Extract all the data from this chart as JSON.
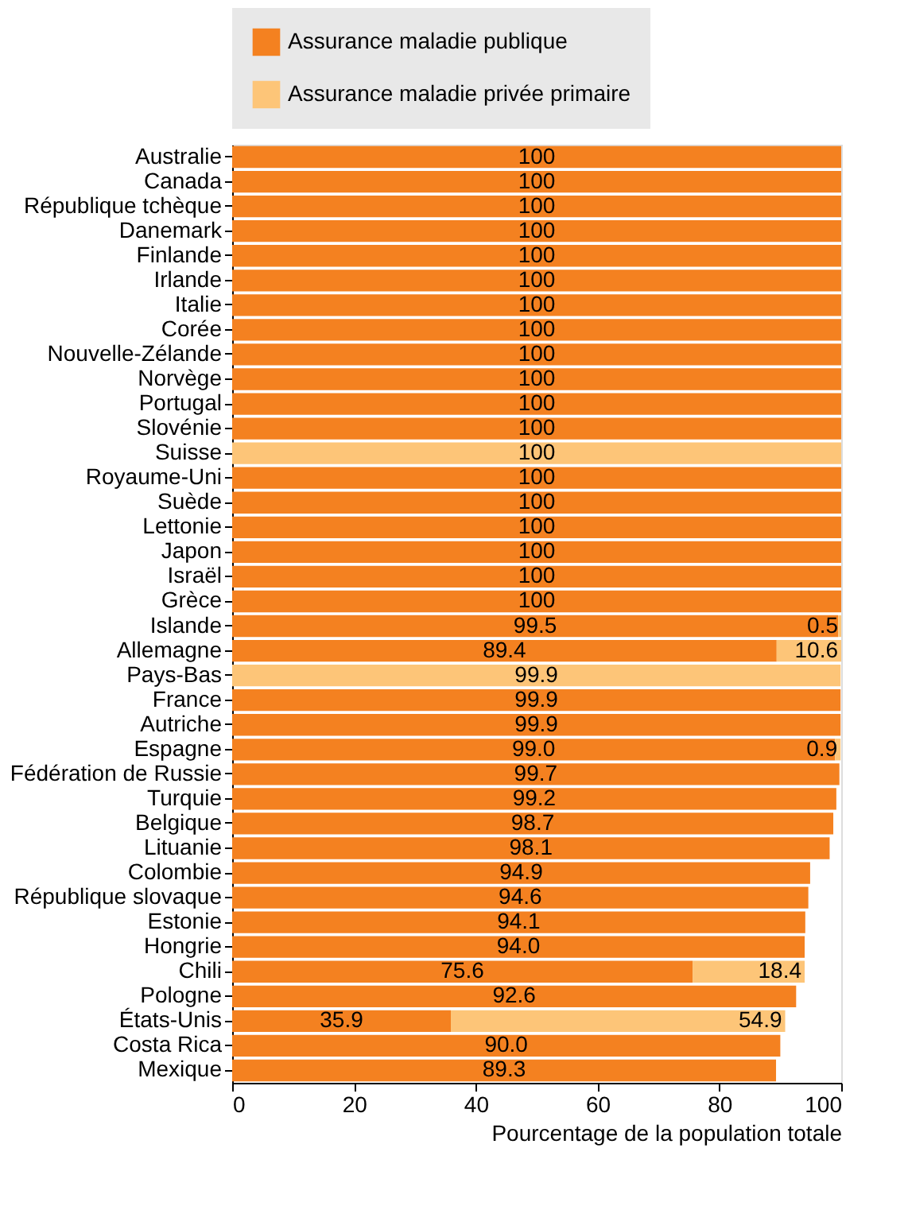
{
  "chart_data": {
    "type": "bar",
    "orientation": "horizontal",
    "stacked": true,
    "categories": [
      "Australie",
      "Canada",
      "République tchèque",
      "Danemark",
      "Finlande",
      "Irlande",
      "Italie",
      "Corée",
      "Nouvelle-Zélande",
      "Norvège",
      "Portugal",
      "Slovénie",
      "Suisse",
      "Royaume-Uni",
      "Suède",
      "Lettonie",
      "Japon",
      "Israël",
      "Grèce",
      "Islande",
      "Allemagne",
      "Pays-Bas",
      "France",
      "Autriche",
      "Espagne",
      "Fédération de Russie",
      "Turquie",
      "Belgique",
      "Lituanie",
      "Colombie",
      "République slovaque",
      "Estonie",
      "Hongrie",
      "Chili",
      "Pologne",
      "États-Unis",
      "Costa Rica",
      "Mexique"
    ],
    "series": [
      {
        "name": "Assurance maladie publique",
        "color": "#f48120",
        "values": [
          100,
          100,
          100,
          100,
          100,
          100,
          100,
          100,
          100,
          100,
          100,
          100,
          null,
          100,
          100,
          100,
          100,
          100,
          100,
          99.5,
          89.4,
          null,
          99.9,
          99.9,
          99.0,
          99.7,
          99.2,
          98.7,
          98.1,
          94.9,
          94.6,
          94.1,
          94.0,
          75.6,
          92.6,
          35.9,
          90.0,
          89.3
        ],
        "value_labels": [
          "100",
          "100",
          "100",
          "100",
          "100",
          "100",
          "100",
          "100",
          "100",
          "100",
          "100",
          "100",
          null,
          "100",
          "100",
          "100",
          "100",
          "100",
          "100",
          "99.5",
          "89.4",
          null,
          "99.9",
          "99.9",
          "99.0",
          "99.7",
          "99.2",
          "98.7",
          "98.1",
          "94.9",
          "94.6",
          "94.1",
          "94.0",
          "75.6",
          "92.6",
          "35.9",
          "90.0",
          "89.3"
        ]
      },
      {
        "name": "Assurance maladie privée primaire",
        "color": "#fdc578",
        "values": [
          null,
          null,
          null,
          null,
          null,
          null,
          null,
          null,
          null,
          null,
          null,
          null,
          100,
          null,
          null,
          null,
          null,
          null,
          null,
          0.5,
          10.6,
          99.9,
          null,
          null,
          0.9,
          null,
          null,
          null,
          null,
          null,
          null,
          null,
          null,
          18.4,
          null,
          54.9,
          null,
          null
        ],
        "value_labels": [
          null,
          null,
          null,
          null,
          null,
          null,
          null,
          null,
          null,
          null,
          null,
          null,
          "100",
          null,
          null,
          null,
          null,
          null,
          null,
          "0.5",
          "10.6",
          "99.9",
          null,
          null,
          "0.9",
          null,
          null,
          null,
          null,
          null,
          null,
          null,
          null,
          "18.4",
          null,
          "54.9",
          null,
          null
        ]
      }
    ],
    "xlim": [
      0,
      100
    ],
    "xticks": [
      0,
      20,
      40,
      60,
      80,
      100
    ],
    "xlabel": "Pourcentage de la population totale",
    "legend": "top",
    "grid": false,
    "data_labels": true
  }
}
